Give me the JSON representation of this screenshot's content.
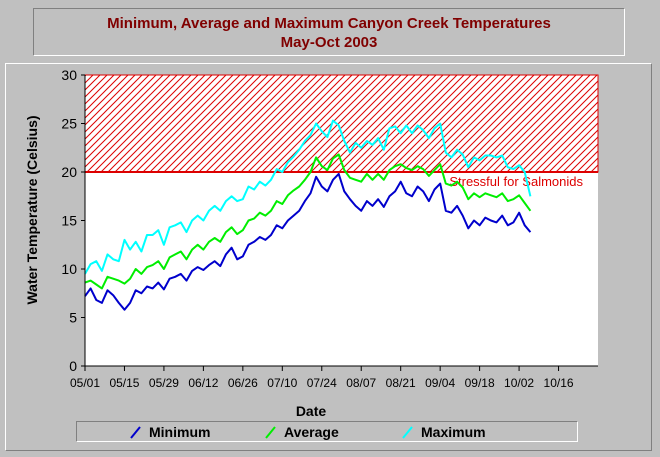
{
  "chart_data": {
    "type": "line",
    "title": "Minimum, Average and Maximum Canyon Creek Temperatures",
    "subtitle": "May-Oct 2003",
    "xlabel": "Date",
    "ylabel": "Water Temperature (Celsius)",
    "ylim": [
      0,
      30
    ],
    "yticks": [
      "0",
      "5",
      "10",
      "15",
      "20",
      "25",
      "30"
    ],
    "xlim": [
      "2003-05-01",
      "2003-10-30"
    ],
    "xticks": [
      "05/01",
      "05/15",
      "05/29",
      "06/12",
      "06/26",
      "07/10",
      "07/24",
      "08/07",
      "08/21",
      "09/04",
      "09/18",
      "10/02",
      "10/16"
    ],
    "grid": false,
    "legend_position": "bottom",
    "colors": {
      "Minimum": "#0000cc",
      "Average": "#00ee00",
      "Maximum": "#00ffff",
      "threshold": "#dd0000"
    },
    "threshold": {
      "value": 20,
      "upper": 30,
      "label": "Stressful for Salmonids"
    },
    "x": [
      "2003-05-01",
      "2003-05-03",
      "2003-05-05",
      "2003-05-07",
      "2003-05-09",
      "2003-05-11",
      "2003-05-13",
      "2003-05-15",
      "2003-05-17",
      "2003-05-19",
      "2003-05-21",
      "2003-05-23",
      "2003-05-25",
      "2003-05-27",
      "2003-05-29",
      "2003-05-31",
      "2003-06-02",
      "2003-06-04",
      "2003-06-06",
      "2003-06-08",
      "2003-06-10",
      "2003-06-12",
      "2003-06-14",
      "2003-06-16",
      "2003-06-18",
      "2003-06-20",
      "2003-06-22",
      "2003-06-24",
      "2003-06-26",
      "2003-06-28",
      "2003-06-30",
      "2003-07-02",
      "2003-07-04",
      "2003-07-06",
      "2003-07-08",
      "2003-07-10",
      "2003-07-12",
      "2003-07-14",
      "2003-07-16",
      "2003-07-18",
      "2003-07-20",
      "2003-07-22",
      "2003-07-24",
      "2003-07-26",
      "2003-07-28",
      "2003-07-30",
      "2003-08-01",
      "2003-08-03",
      "2003-08-05",
      "2003-08-07",
      "2003-08-09",
      "2003-08-11",
      "2003-08-13",
      "2003-08-15",
      "2003-08-17",
      "2003-08-19",
      "2003-08-21",
      "2003-08-23",
      "2003-08-25",
      "2003-08-27",
      "2003-08-29",
      "2003-08-31",
      "2003-09-02",
      "2003-09-04",
      "2003-09-06",
      "2003-09-08",
      "2003-09-10",
      "2003-09-12",
      "2003-09-14",
      "2003-09-16",
      "2003-09-18",
      "2003-09-20",
      "2003-09-22",
      "2003-09-24",
      "2003-09-26",
      "2003-09-28",
      "2003-09-30",
      "2003-10-02",
      "2003-10-04",
      "2003-10-06"
    ],
    "series": [
      {
        "name": "Minimum",
        "values": [
          7.2,
          8.0,
          6.8,
          6.5,
          7.8,
          7.3,
          6.5,
          5.8,
          6.5,
          7.8,
          7.5,
          8.2,
          8.0,
          8.6,
          7.9,
          9.0,
          9.2,
          9.5,
          8.8,
          9.8,
          10.2,
          9.9,
          10.4,
          10.8,
          10.3,
          11.5,
          12.2,
          11.0,
          11.3,
          12.5,
          12.8,
          13.3,
          13.0,
          13.5,
          14.5,
          14.2,
          15.0,
          15.5,
          16.0,
          17.0,
          17.8,
          19.5,
          18.5,
          18.0,
          19.2,
          19.8,
          18.0,
          17.2,
          16.5,
          16.0,
          17.0,
          16.5,
          17.2,
          16.4,
          17.5,
          18.0,
          19.0,
          17.8,
          17.5,
          18.5,
          18.0,
          17.0,
          18.2,
          18.8,
          16.0,
          15.8,
          16.5,
          15.5,
          14.2,
          15.0,
          14.5,
          15.3,
          15.0,
          14.8,
          15.5,
          14.5,
          14.8,
          15.8,
          14.5,
          13.8
        ]
      },
      {
        "name": "Average",
        "values": [
          8.6,
          8.8,
          8.4,
          8.0,
          9.2,
          9.0,
          8.8,
          8.5,
          9.0,
          10.0,
          9.5,
          10.2,
          10.4,
          10.8,
          10.0,
          11.2,
          11.5,
          11.8,
          11.0,
          12.0,
          12.5,
          12.0,
          12.8,
          13.2,
          12.8,
          13.8,
          14.3,
          13.6,
          14.0,
          15.0,
          15.2,
          15.8,
          15.5,
          16.0,
          17.0,
          16.7,
          17.6,
          18.1,
          18.5,
          19.2,
          20.0,
          21.5,
          20.6,
          20.2,
          21.4,
          21.8,
          20.2,
          19.4,
          19.2,
          19.0,
          19.8,
          19.2,
          19.8,
          19.2,
          20.2,
          20.6,
          20.8,
          20.4,
          20.2,
          20.6,
          20.3,
          19.6,
          20.2,
          20.8,
          18.8,
          18.6,
          19.0,
          18.4,
          17.2,
          17.8,
          17.4,
          17.8,
          17.6,
          17.4,
          17.8,
          17.0,
          17.2,
          17.6,
          16.8,
          16.0
        ]
      },
      {
        "name": "Maximum",
        "values": [
          9.5,
          10.5,
          10.8,
          9.8,
          11.5,
          11.0,
          10.8,
          13.0,
          12.0,
          12.8,
          11.8,
          13.5,
          13.5,
          14.0,
          12.5,
          14.3,
          14.5,
          14.8,
          13.8,
          15.0,
          15.5,
          15.0,
          16.0,
          16.5,
          16.0,
          17.0,
          17.5,
          17.0,
          17.2,
          18.5,
          18.2,
          19.0,
          18.6,
          19.2,
          20.3,
          20.0,
          21.0,
          21.6,
          22.3,
          23.2,
          23.8,
          25.0,
          24.2,
          23.6,
          25.3,
          24.8,
          23.2,
          22.0,
          23.0,
          22.5,
          23.2,
          22.8,
          23.5,
          22.3,
          24.5,
          24.7,
          24.0,
          24.8,
          24.0,
          24.8,
          24.3,
          23.5,
          24.5,
          25.0,
          22.0,
          21.5,
          22.3,
          21.8,
          20.5,
          21.5,
          21.2,
          21.7,
          21.7,
          21.5,
          21.7,
          20.5,
          20.3,
          20.7,
          20.0,
          17.5
        ]
      }
    ]
  }
}
